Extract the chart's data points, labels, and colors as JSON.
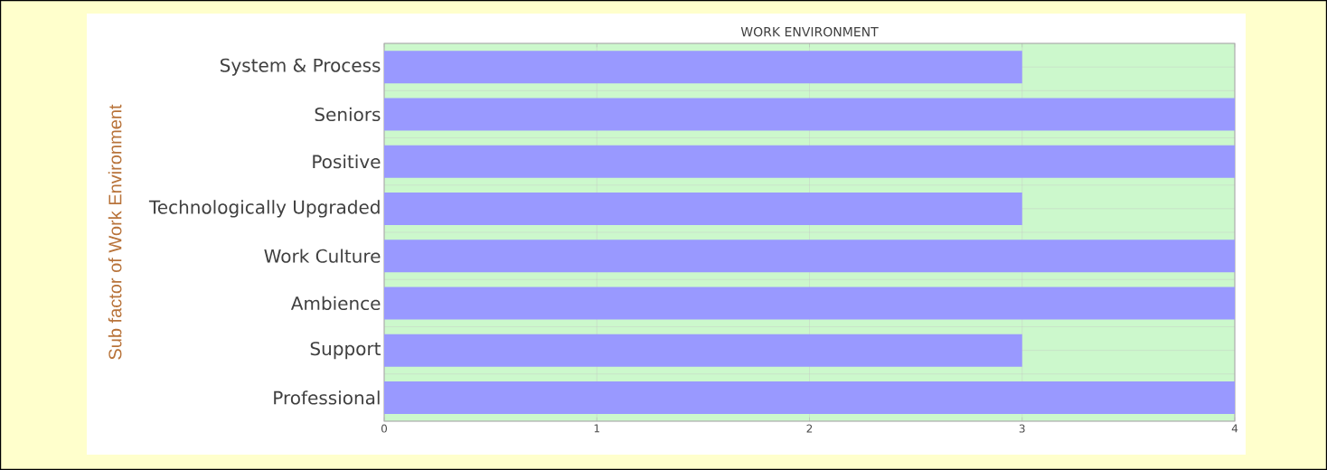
{
  "chart_data": {
    "type": "bar",
    "orientation": "horizontal",
    "title": "WORK ENVIRONMENT",
    "ylabel": "Sub factor of Work Environment",
    "categories": [
      "System & Process",
      "Seniors",
      "Positive",
      "Technologically Upgraded",
      "Work Culture",
      "Ambience",
      "Support",
      "Professional"
    ],
    "values": [
      3,
      4,
      4,
      3,
      4,
      4,
      3,
      4
    ],
    "color": "#9999ff",
    "xlim": [
      0,
      4
    ],
    "xticks": [
      0,
      1,
      2,
      3,
      4
    ],
    "grid": true,
    "bands": [
      {
        "axis": "x",
        "from": 0,
        "to": 4,
        "color": "#ccf8cc"
      }
    ]
  }
}
